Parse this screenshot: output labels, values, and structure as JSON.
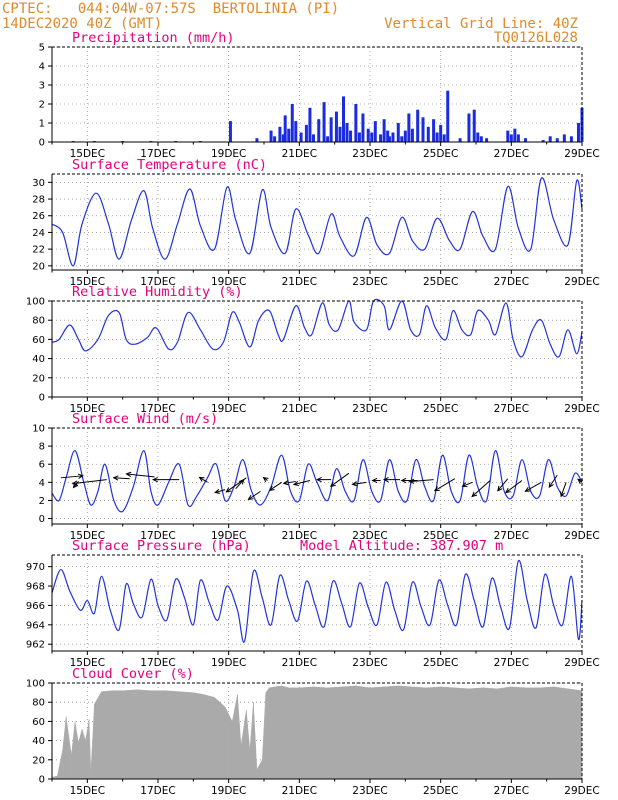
{
  "header": {
    "line1_left": "CPTEC:   044:04W-07:57S  BERTOLINIA (PI)",
    "line2_left": "14DEC2020 40Z (GMT)",
    "line1_right": "Vertical Grid Line: 40Z",
    "line2_right": "TQ0126L028"
  },
  "colors": {
    "header": "#e08a2a",
    "title": "#e6007e",
    "line": "#2233dd",
    "bar": "#1a2be0",
    "cloud": "#aaaaaa"
  },
  "x_axis": {
    "days": [
      15,
      17,
      19,
      21,
      23,
      25,
      27,
      29
    ],
    "labels": [
      "15DEC",
      "17DEC",
      "19DEC",
      "21DEC",
      "23DEC",
      "25DEC",
      "27DEC",
      "29DEC"
    ],
    "xmin": 14.0,
    "xmax": 29.0
  },
  "chart_data": [
    {
      "id": "precip",
      "type": "bar",
      "title": "Precipitation (mm/h)",
      "ylim": [
        0,
        5
      ],
      "yticks": [
        0,
        1,
        2,
        3,
        4,
        5
      ],
      "x": [
        14.6,
        15.2,
        16.0,
        16.8,
        17.5,
        18.2,
        19.05,
        19.8,
        20.2,
        20.3,
        20.45,
        20.55,
        20.6,
        20.7,
        20.8,
        20.9,
        21.05,
        21.2,
        21.3,
        21.4,
        21.55,
        21.7,
        21.8,
        21.9,
        22.05,
        22.15,
        22.25,
        22.35,
        22.45,
        22.6,
        22.7,
        22.8,
        22.95,
        23.05,
        23.15,
        23.3,
        23.4,
        23.5,
        23.55,
        23.65,
        23.8,
        23.9,
        24.0,
        24.1,
        24.2,
        24.35,
        24.5,
        24.65,
        24.8,
        24.9,
        25.0,
        25.1,
        25.2,
        25.55,
        25.8,
        25.95,
        26.05,
        26.15,
        26.3,
        26.9,
        27.0,
        27.1,
        27.2,
        27.4,
        27.9,
        28.1,
        28.3,
        28.5,
        28.7,
        28.9,
        29.0
      ],
      "values": [
        0.05,
        0.05,
        0.05,
        0.05,
        0.05,
        0.05,
        1.1,
        0.2,
        0.6,
        0.3,
        0.8,
        0.4,
        1.4,
        0.7,
        2.0,
        1.1,
        0.5,
        0.9,
        1.8,
        0.4,
        1.2,
        2.1,
        0.3,
        1.3,
        1.6,
        0.8,
        2.4,
        1.0,
        0.6,
        2.0,
        0.5,
        1.5,
        0.7,
        0.5,
        1.1,
        0.4,
        1.2,
        0.6,
        0.3,
        0.5,
        1.0,
        0.3,
        0.6,
        1.5,
        0.7,
        1.7,
        1.3,
        0.8,
        1.2,
        0.5,
        0.9,
        0.4,
        2.7,
        0.2,
        1.5,
        1.7,
        0.5,
        0.3,
        0.2,
        0.6,
        0.4,
        0.7,
        0.4,
        0.2,
        0.1,
        0.3,
        0.2,
        0.4,
        0.3,
        1.0,
        1.8
      ]
    },
    {
      "id": "temp",
      "type": "line",
      "title": "Surface Temperature (nC)",
      "ylim": [
        19.5,
        31
      ],
      "yticks": [
        20,
        22,
        24,
        26,
        28,
        30
      ],
      "x": [
        14.0,
        14.3,
        14.6,
        14.85,
        15.25,
        15.6,
        15.9,
        16.25,
        16.6,
        16.85,
        17.2,
        17.55,
        17.9,
        18.2,
        18.6,
        18.95,
        19.2,
        19.6,
        19.95,
        20.2,
        20.6,
        20.9,
        21.25,
        21.55,
        21.9,
        22.15,
        22.55,
        22.9,
        23.2,
        23.55,
        23.9,
        24.2,
        24.55,
        24.9,
        25.25,
        25.55,
        25.9,
        26.2,
        26.55,
        26.9,
        27.2,
        27.55,
        27.85,
        28.2,
        28.6,
        28.85,
        29.0
      ],
      "values": [
        25.0,
        24.0,
        20.0,
        25.0,
        28.7,
        25.0,
        20.8,
        25.5,
        29.0,
        24.5,
        20.8,
        25.0,
        29.2,
        24.8,
        22.0,
        29.4,
        25.5,
        21.5,
        29.1,
        24.6,
        21.5,
        26.8,
        23.7,
        21.5,
        26.2,
        23.5,
        21.2,
        25.8,
        22.5,
        21.5,
        25.8,
        23.0,
        22.0,
        25.7,
        23.0,
        22.0,
        26.5,
        23.5,
        22.0,
        29.5,
        24.5,
        22.0,
        30.5,
        25.5,
        22.5,
        30.2,
        26.8
      ]
    },
    {
      "id": "rh",
      "type": "line",
      "title": "Relative Humidity (%)",
      "ylim": [
        0,
        100
      ],
      "yticks": [
        0,
        20,
        40,
        60,
        80,
        100
      ],
      "x": [
        14.0,
        14.2,
        14.5,
        14.75,
        14.95,
        15.3,
        15.6,
        15.9,
        16.1,
        16.35,
        16.7,
        16.95,
        17.3,
        17.55,
        17.85,
        18.2,
        18.55,
        18.85,
        19.1,
        19.3,
        19.6,
        19.85,
        20.15,
        20.4,
        20.55,
        20.9,
        21.15,
        21.35,
        21.65,
        21.85,
        22.1,
        22.4,
        22.55,
        22.9,
        23.1,
        23.4,
        23.55,
        23.9,
        24.15,
        24.4,
        24.6,
        24.85,
        25.15,
        25.35,
        25.6,
        25.85,
        26.05,
        26.35,
        26.55,
        26.85,
        27.05,
        27.3,
        27.6,
        27.85,
        28.1,
        28.35,
        28.6,
        28.85,
        29.0
      ],
      "values": [
        57,
        60,
        75,
        60,
        48,
        60,
        85,
        88,
        60,
        55,
        62,
        72,
        50,
        57,
        88,
        70,
        50,
        57,
        88,
        78,
        52,
        80,
        90,
        65,
        60,
        95,
        72,
        65,
        98,
        75,
        70,
        100,
        78,
        70,
        100,
        95,
        70,
        100,
        70,
        65,
        95,
        72,
        60,
        90,
        70,
        65,
        90,
        80,
        65,
        98,
        60,
        42,
        70,
        80,
        55,
        42,
        70,
        45,
        68
      ]
    },
    {
      "id": "wind",
      "type": "line",
      "title": "Surface Wind (m/s)",
      "ylim": [
        -0.6,
        10
      ],
      "yticks": [
        0,
        2,
        4,
        6,
        8,
        10
      ],
      "x": [
        14.0,
        14.2,
        14.4,
        14.65,
        14.9,
        15.1,
        15.3,
        15.5,
        15.75,
        16.0,
        16.3,
        16.6,
        16.8,
        17.0,
        17.3,
        17.6,
        17.85,
        18.1,
        18.4,
        18.65,
        18.9,
        19.15,
        19.4,
        19.65,
        19.9,
        20.2,
        20.5,
        20.75,
        21.0,
        21.25,
        21.5,
        21.8,
        22.05,
        22.3,
        22.55,
        22.8,
        23.05,
        23.3,
        23.55,
        23.8,
        24.05,
        24.3,
        24.55,
        24.8,
        25.05,
        25.3,
        25.55,
        25.8,
        26.05,
        26.3,
        26.55,
        26.8,
        27.05,
        27.3,
        27.55,
        27.8,
        28.05,
        28.3,
        28.55,
        28.8,
        29.0
      ],
      "values": [
        2.8,
        2.0,
        4.5,
        7.5,
        4.0,
        1.5,
        3.0,
        6.0,
        2.0,
        0.8,
        3.5,
        7.5,
        3.0,
        1.5,
        4.0,
        6.0,
        1.5,
        2.5,
        4.5,
        6.0,
        2.0,
        3.5,
        6.5,
        3.0,
        1.5,
        3.5,
        7.0,
        3.0,
        2.0,
        6.0,
        4.0,
        2.0,
        5.5,
        3.0,
        2.0,
        6.5,
        3.0,
        2.0,
        6.5,
        3.0,
        2.0,
        6.5,
        3.5,
        2.0,
        7.0,
        3.0,
        2.0,
        7.0,
        3.5,
        2.0,
        7.5,
        3.0,
        2.5,
        6.5,
        3.0,
        2.5,
        6.5,
        3.5,
        2.5,
        5.0,
        4.0
      ],
      "arrows": [
        {
          "x": 14.25,
          "y": 4.5,
          "dx": 22,
          "dy": -2
        },
        {
          "x": 14.75,
          "y": 4.1,
          "dx": -5,
          "dy": 6
        },
        {
          "x": 15.55,
          "y": 4.3,
          "dx": -34,
          "dy": 4
        },
        {
          "x": 16.2,
          "y": 4.4,
          "dx": -16,
          "dy": -1
        },
        {
          "x": 16.9,
          "y": 4.6,
          "dx": -28,
          "dy": -3
        },
        {
          "x": 17.6,
          "y": 4.3,
          "dx": -26,
          "dy": 0
        },
        {
          "x": 18.4,
          "y": 4.0,
          "dx": -8,
          "dy": -5
        },
        {
          "x": 18.9,
          "y": 3.2,
          "dx": -10,
          "dy": 3
        },
        {
          "x": 19.2,
          "y": 3.3,
          "dx": 8,
          "dy": -9
        },
        {
          "x": 19.5,
          "y": 4.5,
          "dx": -20,
          "dy": 14
        },
        {
          "x": 19.9,
          "y": 3.0,
          "dx": -12,
          "dy": 8
        },
        {
          "x": 20.1,
          "y": 4.2,
          "dx": -4,
          "dy": -3
        },
        {
          "x": 20.5,
          "y": 4.0,
          "dx": -12,
          "dy": 8
        },
        {
          "x": 20.9,
          "y": 4.1,
          "dx": -12,
          "dy": 2
        },
        {
          "x": 21.3,
          "y": 4.2,
          "dx": -16,
          "dy": 4
        },
        {
          "x": 21.9,
          "y": 4.3,
          "dx": -14,
          "dy": 0
        },
        {
          "x": 22.4,
          "y": 5.0,
          "dx": -18,
          "dy": 13
        },
        {
          "x": 22.9,
          "y": 4.0,
          "dx": -14,
          "dy": 2
        },
        {
          "x": 23.3,
          "y": 4.2,
          "dx": -8,
          "dy": 0
        },
        {
          "x": 23.85,
          "y": 4.3,
          "dx": -16,
          "dy": 0
        },
        {
          "x": 24.35,
          "y": 4.2,
          "dx": -16,
          "dy": 0
        },
        {
          "x": 24.8,
          "y": 4.3,
          "dx": -24,
          "dy": 2
        },
        {
          "x": 25.4,
          "y": 4.4,
          "dx": -20,
          "dy": 12
        },
        {
          "x": 25.9,
          "y": 4.0,
          "dx": -10,
          "dy": 4
        },
        {
          "x": 26.4,
          "y": 4.2,
          "dx": -18,
          "dy": 16
        },
        {
          "x": 26.9,
          "y": 4.4,
          "dx": -10,
          "dy": 12
        },
        {
          "x": 27.3,
          "y": 4.2,
          "dx": -16,
          "dy": 12
        },
        {
          "x": 27.85,
          "y": 4.0,
          "dx": -16,
          "dy": 9
        },
        {
          "x": 28.3,
          "y": 4.8,
          "dx": -8,
          "dy": 12
        },
        {
          "x": 28.55,
          "y": 4.0,
          "dx": -5,
          "dy": 14
        },
        {
          "x": 29.0,
          "y": 4.0,
          "dx": -4,
          "dy": -3
        }
      ]
    },
    {
      "id": "pres",
      "type": "line",
      "title": "Surface Pressure (hPa)",
      "annotation": "Model Altitude: 387.907 m",
      "ylim": [
        961.3,
        971.2
      ],
      "yticks": [
        962,
        964,
        966,
        968,
        970
      ],
      "x": [
        14.0,
        14.25,
        14.5,
        14.8,
        15.0,
        15.2,
        15.4,
        15.65,
        15.9,
        16.1,
        16.3,
        16.55,
        16.8,
        17.0,
        17.25,
        17.5,
        17.75,
        18.0,
        18.2,
        18.45,
        18.7,
        18.95,
        19.25,
        19.45,
        19.7,
        19.95,
        20.2,
        20.45,
        20.7,
        20.95,
        21.2,
        21.45,
        21.7,
        21.95,
        22.2,
        22.45,
        22.7,
        22.95,
        23.2,
        23.45,
        23.7,
        23.95,
        24.2,
        24.45,
        24.7,
        24.95,
        25.2,
        25.45,
        25.7,
        25.95,
        26.2,
        26.45,
        26.7,
        26.95,
        27.2,
        27.45,
        27.7,
        27.95,
        28.2,
        28.45,
        28.7,
        28.9,
        29.0
      ],
      "values": [
        967.3,
        969.7,
        967.5,
        965.5,
        966.5,
        965.2,
        969.0,
        965.5,
        963.5,
        968.2,
        966.2,
        964.8,
        968.7,
        966.0,
        964.5,
        968.7,
        966.8,
        964.0,
        968.6,
        966.3,
        964.5,
        968.0,
        965.5,
        962.3,
        969.5,
        966.8,
        964.0,
        969.1,
        966.5,
        964.4,
        968.5,
        966.0,
        963.8,
        968.5,
        966.2,
        963.8,
        968.3,
        965.8,
        964.0,
        968.4,
        965.5,
        963.5,
        968.4,
        965.8,
        964.0,
        968.6,
        966.0,
        964.0,
        969.2,
        966.5,
        963.8,
        968.8,
        965.8,
        963.7,
        970.6,
        966.5,
        963.7,
        969.2,
        966.0,
        964.0,
        969.0,
        962.5,
        966.5
      ]
    },
    {
      "id": "cloud",
      "type": "area",
      "title": "Cloud Cover (%)",
      "ylim": [
        0,
        100
      ],
      "yticks": [
        0,
        20,
        40,
        60,
        80,
        100
      ],
      "x": [
        14.0,
        14.15,
        14.3,
        14.4,
        14.5,
        14.55,
        14.65,
        14.75,
        14.85,
        14.95,
        15.05,
        15.1,
        15.2,
        15.4,
        15.7,
        16.0,
        16.4,
        16.8,
        17.2,
        17.6,
        18.0,
        18.3,
        18.6,
        18.9,
        19.1,
        19.25,
        19.35,
        19.5,
        19.6,
        19.7,
        19.8,
        19.95,
        20.05,
        20.15,
        20.3,
        20.5,
        20.7,
        21.0,
        21.4,
        21.8,
        22.2,
        22.6,
        23.0,
        23.4,
        23.8,
        24.2,
        24.6,
        25.0,
        25.4,
        25.8,
        26.2,
        26.6,
        27.0,
        27.4,
        27.8,
        28.2,
        28.6,
        29.0
      ],
      "values": [
        2,
        3,
        30,
        65,
        38,
        25,
        60,
        38,
        52,
        40,
        62,
        8,
        78,
        91,
        92,
        92,
        93,
        92,
        92,
        91,
        90,
        88,
        85,
        75,
        60,
        88,
        35,
        72,
        30,
        80,
        10,
        20,
        90,
        95,
        96,
        97,
        95,
        95,
        96,
        95,
        96,
        97,
        95,
        96,
        97,
        96,
        95,
        96,
        95,
        94,
        95,
        94,
        96,
        95,
        95,
        96,
        94,
        92
      ]
    }
  ]
}
